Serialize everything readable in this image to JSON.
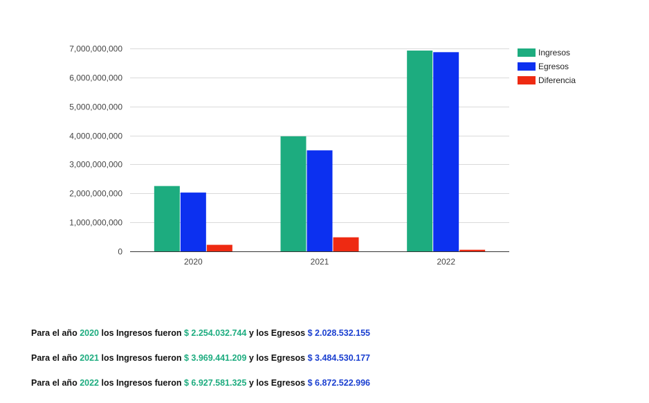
{
  "chart_data": {
    "type": "bar",
    "categories": [
      "2020",
      "2021",
      "2022"
    ],
    "series": [
      {
        "name": "Ingresos",
        "color": "#1dac7f",
        "values": [
          2254032744,
          3969441209,
          6927581325
        ]
      },
      {
        "name": "Egresos",
        "color": "#0c30f0",
        "values": [
          2028532155,
          3484530177,
          6872522996
        ]
      },
      {
        "name": "Diferencia",
        "color": "#ee2a12",
        "values": [
          225500589,
          484911032,
          55058329
        ]
      }
    ],
    "ylim": [
      0,
      7000000000
    ],
    "yticks": [
      0,
      1000000000,
      2000000000,
      3000000000,
      4000000000,
      5000000000,
      6000000000,
      7000000000
    ],
    "ytick_labels": [
      "0",
      "1,000,000,000",
      "2,000,000,000",
      "3,000,000,000",
      "4,000,000,000",
      "5,000,000,000",
      "6,000,000,000",
      "7,000,000,000"
    ],
    "title": "",
    "xlabel": "",
    "ylabel": "",
    "grid": true,
    "legend_position": "top-right"
  },
  "summaries": [
    {
      "prefix": "Para el año",
      "year": "2020",
      "mid": "los Ingresos fueron",
      "ingresos": "$ 2.254.032.744",
      "join": "y los Egresos",
      "egresos": "$ 2.028.532.155"
    },
    {
      "prefix": "Para el año",
      "year": "2021",
      "mid": "los Ingresos fueron",
      "ingresos": "$ 3.969.441.209",
      "join": "y los Egresos",
      "egresos": "$ 3.484.530.177"
    },
    {
      "prefix": "Para el año",
      "year": "2022",
      "mid": "los Ingresos fueron",
      "ingresos": "$ 6.927.581.325",
      "join": "y los Egresos",
      "egresos": "$ 6.872.522.996"
    }
  ]
}
